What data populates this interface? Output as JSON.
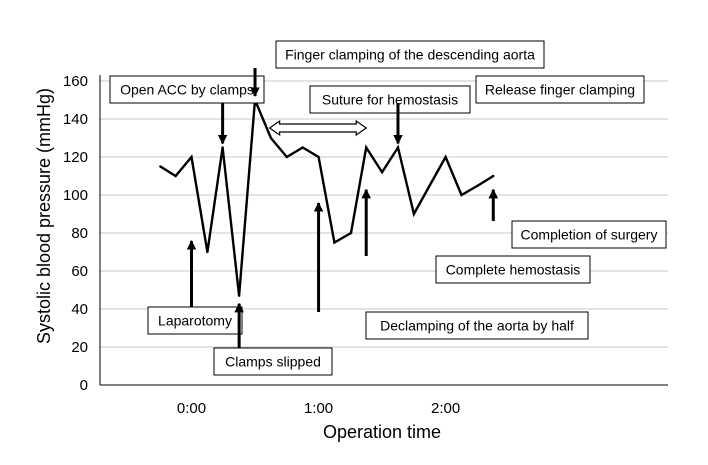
{
  "chart_data": {
    "type": "line",
    "title": "",
    "xlabel": "Operation time",
    "ylabel": "Systolic blood pressure (mmHg)",
    "xlim": [
      -0.72,
      3.75
    ],
    "ylim": [
      0,
      160
    ],
    "y_ticks": [
      0,
      20,
      40,
      60,
      80,
      100,
      120,
      140,
      160
    ],
    "x_ticks": [
      {
        "value": 0,
        "label": "0:00"
      },
      {
        "value": 1,
        "label": "1:00"
      },
      {
        "value": 2,
        "label": "2:00"
      }
    ],
    "grid": "horizontal",
    "series": [
      {
        "name": "",
        "x": [
          -0.245,
          -0.125,
          0.0,
          0.125,
          0.245,
          0.375,
          0.5,
          0.625,
          0.75,
          0.875,
          1.0,
          1.125,
          1.255,
          1.375,
          1.5,
          1.625,
          1.75,
          1.875,
          2.0,
          2.125,
          2.255,
          2.375
        ],
        "y": [
          115,
          110,
          120,
          70,
          125,
          47,
          150,
          130,
          120,
          125,
          120,
          75,
          80,
          125,
          112,
          125,
          90,
          105,
          120,
          100,
          105,
          110
        ]
      }
    ],
    "annotations": [
      {
        "label": "Open ACC by clamps",
        "x": 0.245,
        "y": 125,
        "direction": "down"
      },
      {
        "label": "Finger clamping of the descending aorta",
        "x": 0.5,
        "y": 150,
        "direction": "down"
      },
      {
        "label": "Suture for hemostasis",
        "x_start": 0.615,
        "x_end": 1.375,
        "y": 135,
        "direction": "both"
      },
      {
        "label": "Release finger clamping",
        "x": 1.625,
        "y": 125,
        "direction": "down"
      },
      {
        "label": "Laparotomy",
        "x": 0.0,
        "y": 80,
        "direction": "up"
      },
      {
        "label": "Clamps slipped",
        "x": 0.375,
        "y": 47,
        "direction": "up"
      },
      {
        "label": "Declamping of the aorta by half",
        "x": 1.0,
        "y": 100,
        "direction": "up"
      },
      {
        "label": "Complete hemostasis",
        "x": 1.375,
        "y": 107,
        "direction": "up"
      },
      {
        "label": "Completion of surgery",
        "x": 2.375,
        "y": 107,
        "direction": "up"
      }
    ]
  }
}
